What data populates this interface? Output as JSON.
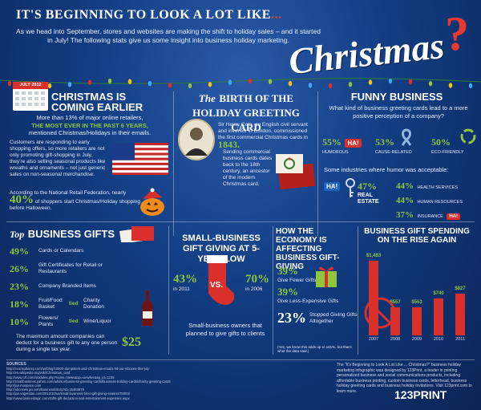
{
  "header": {
    "title_a": "IT'S BEGINNING TO LOOK A LOT LIKE",
    "title_b": "...",
    "script_word": "Christmas",
    "qmark": "?",
    "intro": "As we head into September, stores and websites are making the shift to holiday sales – and it started in July! The following stats give us some insight into business holiday marketing."
  },
  "calendar": {
    "label": "JULY 2012"
  },
  "earlier": {
    "title": "CHRISTMAS IS COMING EARLIER",
    "p1_a": "More than 13% of major online retailers,",
    "p1_b": "THE MOST EVER IN THE PAST 6 YEARS,",
    "p1_c": "mentioned Christmas/Holidays in their emails.",
    "p2": "Customers are responding to early shopping offers, so more retailers are not only promoting gift-shopping in July, they're also selling seasonal products like wreaths and ornaments – not just generic sales on non-seasonal merchandise.",
    "p3": "According to the National Retail Federation, nearly",
    "p3_pct": "40%",
    "p3_b": "of shoppers start Christmas/Holiday shopping before Halloween."
  },
  "birth": {
    "kicker": "The",
    "title": "BIRTH OF THE HOLIDAY GREETING CARD",
    "bio": "Sir Henry Cole, an English civil servant and inventor in London, commissioned the first commercial Christmas cards in",
    "year": "1843.",
    "sending": "Sending commercial business cards dates back to the 18th century, an ancestor of the modern Christmas card."
  },
  "funny": {
    "title": "FUNNY BUSINESS",
    "question": "What kind of business greeting cards lead to a more positive perception of a company?",
    "stats": [
      {
        "pct": "55%",
        "label": "HUMOROUS",
        "tag": "HA!"
      },
      {
        "pct": "53%",
        "label": "CAUSE-RELATED"
      },
      {
        "pct": "50%",
        "label": "ECO-FRIENDLY"
      }
    ],
    "industries_intro": "Some industries where humor was acceptable:",
    "real_estate_pct": "47%",
    "real_estate_label": "REAL ESTATE",
    "ha_tag": "HA!",
    "right": [
      {
        "pct": "44%",
        "label": "HEALTH SERVICES"
      },
      {
        "pct": "44%",
        "label": "HUMAN RESOURCES"
      },
      {
        "pct": "37%",
        "label": "INSURANCE",
        "tag": "HA!"
      }
    ]
  },
  "top_gifts": {
    "kicker": "Top",
    "title": "BUSINESS GIFTS",
    "items": [
      {
        "pct": "49%",
        "label": "Cards or Calendars"
      },
      {
        "pct": "26%",
        "label": "Gift Certificates for Retail or Restaurants"
      },
      {
        "pct": "23%",
        "label": "Company Branded Items"
      }
    ],
    "tied_rows": [
      {
        "pct": "18%",
        "left": "Fruit/Food Basket",
        "tied": "tied",
        "right": "Charity Donation"
      },
      {
        "pct": "10%",
        "left": "Flowers/ Plants",
        "tied": "tied",
        "right": "Wine/Liquor"
      }
    ],
    "max_text": "The maximum amount companies can deduct for a business gift to any one person during a single tax year.",
    "max_amount": "$25"
  },
  "small_biz": {
    "title": "SMALL-BUSINESS GIFT GIVING AT 5-YEAR LOW",
    "left_pct": "43%",
    "left_year": "in 2011",
    "vs": "VS.",
    "right_pct": "70%",
    "right_year": "in 2006",
    "caption": "Small-business owners that planned to give gifts to clients"
  },
  "economy": {
    "title": "HOW THE ECONOMY IS AFFECTING BUSINESS GIFT-GIVING",
    "rows": [
      {
        "pct": "39%",
        "label": "Give Fewer Gifts"
      },
      {
        "pct": "39%",
        "label": "Give Less-Expensive Gifts"
      },
      {
        "pct": "23%",
        "label": "Stopped Giving Gifts Altogether"
      }
    ],
    "note": "(Yes, we know this adds up to 101%, but that's what the data said.)"
  },
  "spending": {
    "title": "BUSINESS GIFT SPENDING ON THE RISE AGAIN"
  },
  "chart_data": {
    "type": "bar",
    "title": "BUSINESS GIFT SPENDING ON THE RISE AGAIN",
    "categories": [
      "2007",
      "2008",
      "2009",
      "2010",
      "2011"
    ],
    "values": [
      1483,
      557,
      553,
      740,
      827
    ],
    "labels": [
      "$1,483",
      "$557",
      "$553",
      "$740",
      "$827"
    ],
    "ylim": [
      0,
      1600
    ]
  },
  "footer": {
    "sources_title": "SOURCES",
    "sources": [
      "http://econsultancy.com/us/blog/10500-dumpsters-and-christmas-emails-hit-our-inboxes-this-july",
      "http://en.wikipedia.org/wiki/Christmas_card",
      "http://www.nrf.com/modules.php?name=News&op=viewlive&sp_id=1225",
      "http://smallbusiness.yahoo.com/advisor/business-greeting-cards/business-holiday-cards/charity-greeting-cards",
      "http://jan.mospace.com",
      "http://abcnews.go.com/Business/story?id=15463878",
      "http://jan.vagetstan.com/2012/10/us/small-business-hit-in-gift-giving-season/75003/",
      "http://www.busineslogic.com/Gifts-gift-deduction-and-entertainment-expenses.aspx"
    ],
    "credit": "The \"It's Beginning to Look A Lot Like ... Christmas?\" business holiday marketing infographic was designed by 123Print, a leader in printing personalized business and social communications products, including affordable business printing, custom business cards, letterhead, business holiday greeting cards and business holiday invitations. Visit 123print.com to learn more.",
    "logo": "123PRINT"
  },
  "colors": {
    "bg": "#123d82",
    "red": "#d9302b",
    "green": "#8dc63f"
  }
}
